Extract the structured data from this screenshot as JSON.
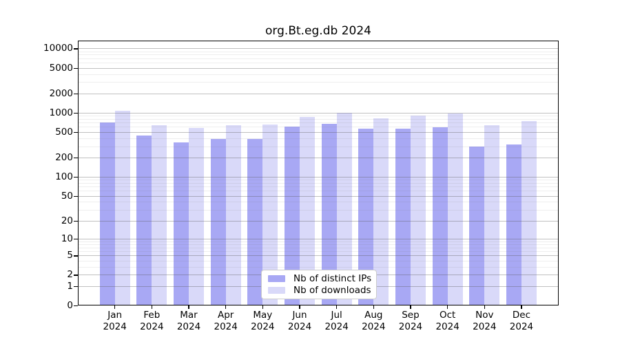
{
  "title": "org.Bt.eg.db 2024",
  "chart_data": {
    "type": "bar",
    "title": "org.Bt.eg.db 2024",
    "categories": [
      "Jan",
      "Feb",
      "Mar",
      "Apr",
      "May",
      "Jun",
      "Jul",
      "Aug",
      "Sep",
      "Oct",
      "Nov",
      "Dec"
    ],
    "x_year": "2024",
    "series": [
      {
        "name": "Nb of distinct IPs",
        "color": "#a8a8f4",
        "values": [
          700,
          440,
          340,
          385,
          390,
          600,
          675,
          560,
          570,
          585,
          300,
          320
        ]
      },
      {
        "name": "Nb of downloads",
        "color": "#d9d9f9",
        "values": [
          1070,
          640,
          575,
          630,
          660,
          855,
          985,
          820,
          910,
          970,
          635,
          740
        ]
      }
    ],
    "xlabel": "",
    "ylabel": "",
    "y_scale": "log10(x+1)",
    "ylim": [
      0,
      13000
    ],
    "y_tick_labels": [
      "10000",
      "5000",
      "2000",
      "1000",
      "500",
      "200",
      "100",
      "50",
      "20",
      "10",
      "5",
      "2",
      "1",
      "0"
    ],
    "y_tick_values": [
      10000,
      5000,
      2000,
      1000,
      500,
      200,
      100,
      50,
      20,
      10,
      5,
      2,
      1,
      0
    ],
    "grid": true,
    "grid_minor": true,
    "legend_position": "bottom-center"
  },
  "colors": {
    "background": "#ffffff",
    "axis": "#000000",
    "grid_major": "#bdbdbd",
    "grid_minor": "#e7e7e7",
    "legend_border": "#cbcbcb"
  }
}
